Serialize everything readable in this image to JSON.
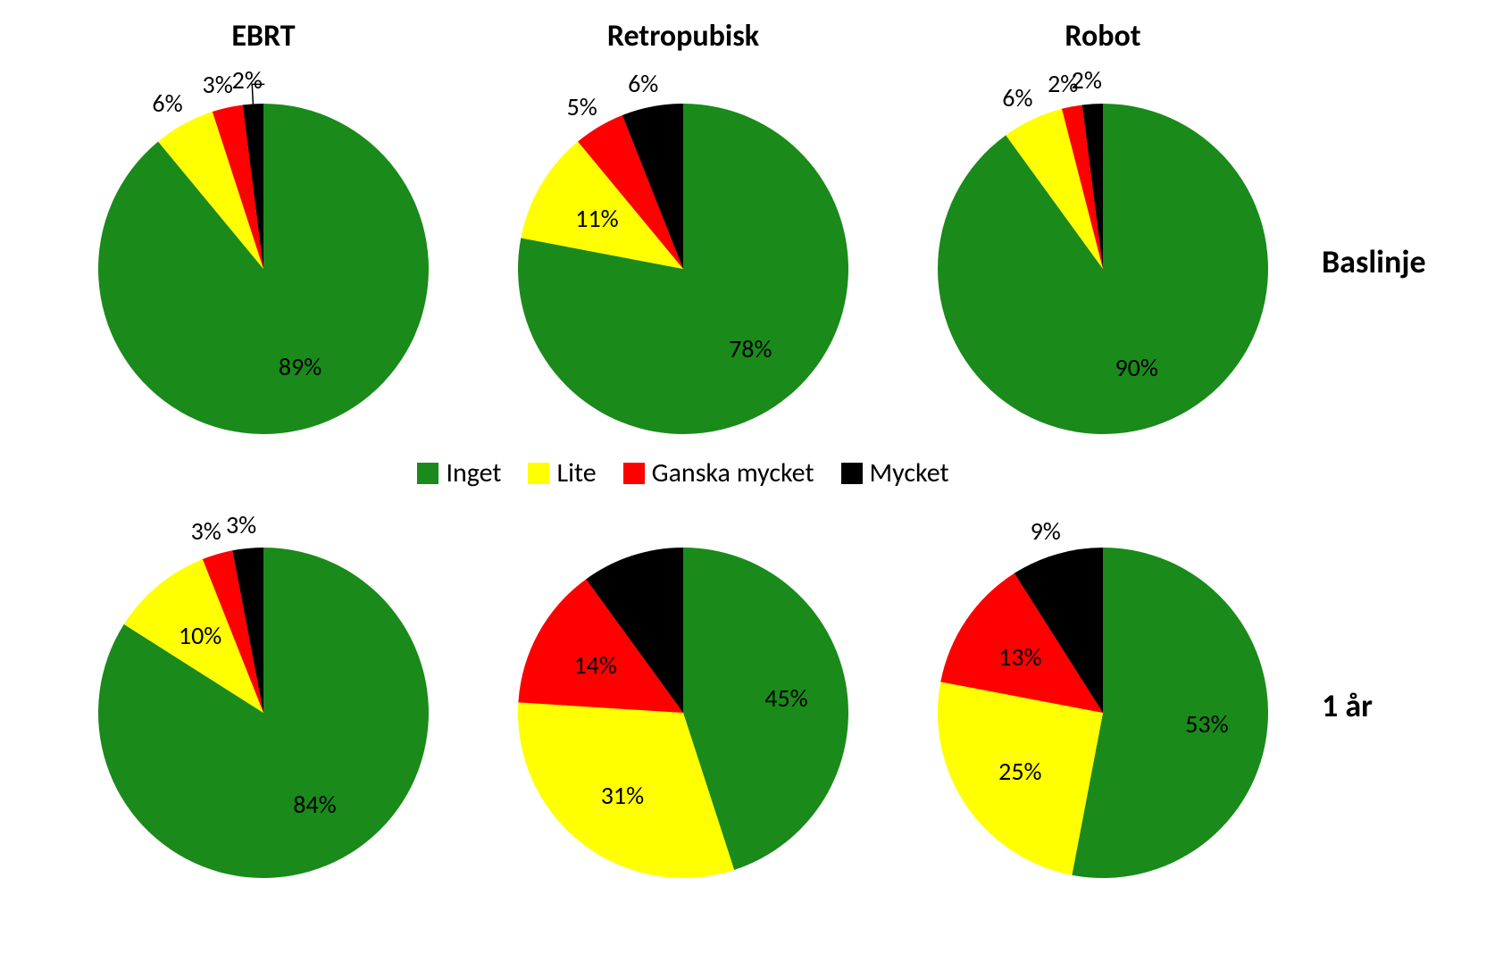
{
  "background_color": "#ffffff",
  "font_family": "Calibri, Arial, sans-serif",
  "title_fontsize": 34,
  "label_fontsize": 28,
  "row_label_fontsize": 36,
  "legend_fontsize": 30,
  "pie_radius": 185,
  "columns": [
    "EBRT",
    "Retropubisk",
    "Robot"
  ],
  "rows": [
    "Baslinje",
    "1 år"
  ],
  "categories": [
    {
      "name": "Inget",
      "color": "#1a8a1a"
    },
    {
      "name": "Lite",
      "color": "#ffff00"
    },
    {
      "name": "Ganska mycket",
      "color": "#ff0000"
    },
    {
      "name": "Mycket",
      "color": "#000000"
    }
  ],
  "charts": [
    [
      {
        "values": [
          89,
          6,
          3,
          2
        ],
        "show_labels": [
          true,
          true,
          true,
          true
        ],
        "outside": [
          false,
          true,
          true,
          true
        ],
        "leader": [
          false,
          false,
          false,
          true
        ]
      },
      {
        "values": [
          78,
          11,
          5,
          6
        ],
        "show_labels": [
          true,
          true,
          true,
          true
        ],
        "outside": [
          false,
          false,
          true,
          true
        ],
        "leader": [
          false,
          false,
          false,
          false
        ]
      },
      {
        "values": [
          90,
          6,
          2,
          2
        ],
        "show_labels": [
          true,
          true,
          true,
          true
        ],
        "outside": [
          false,
          true,
          true,
          true
        ],
        "leader": [
          false,
          false,
          false,
          false
        ]
      }
    ],
    [
      {
        "values": [
          84,
          10,
          3,
          3
        ],
        "show_labels": [
          true,
          true,
          true,
          true
        ],
        "outside": [
          false,
          false,
          true,
          true
        ],
        "leader": [
          false,
          false,
          false,
          false
        ]
      },
      {
        "values": [
          45,
          31,
          14,
          10
        ],
        "show_labels": [
          true,
          true,
          true,
          false
        ],
        "outside": [
          false,
          false,
          false,
          false
        ],
        "leader": [
          false,
          false,
          false,
          false
        ]
      },
      {
        "values": [
          53,
          25,
          13,
          9
        ],
        "show_labels": [
          true,
          true,
          true,
          true
        ],
        "outside": [
          false,
          false,
          false,
          true
        ],
        "leader": [
          false,
          false,
          false,
          false
        ]
      }
    ]
  ]
}
